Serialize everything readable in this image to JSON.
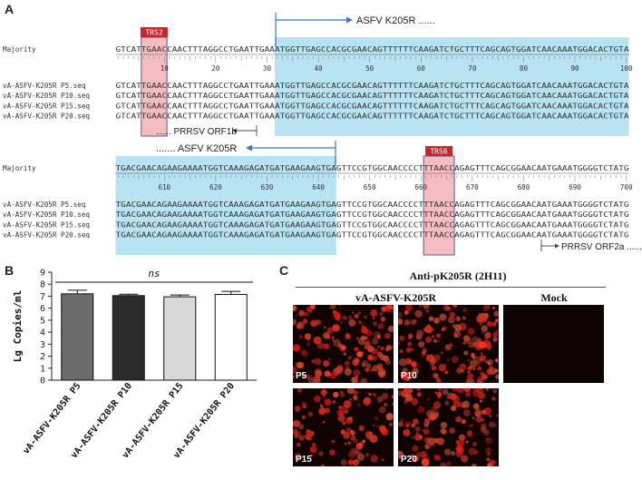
{
  "panelA": {
    "letter": "A",
    "block1": {
      "trs_label": "TRS2",
      "gene_label": "ASFV K205R ......",
      "orf_label": "...... PRRSV ORF1b",
      "majority_label": "Majority",
      "majority_seq": "GTCATTGAACCAACTTTAGGCCTGAATTGAAATGGTTGAGCCACGCGAACAGTTTTTTCAAGATCTGCTTTCAGCAGTGGATCAACAAATGGACACTGTA",
      "ruler": [
        "10",
        "20",
        "30",
        "40",
        "50",
        "60",
        "70",
        "80",
        "90",
        "100"
      ],
      "rows": [
        {
          "name": "vA-ASFV-K205R P5.seq",
          "seq": "GTCATTGAACCAACTTTAGGCCTGAATTGAAATGGTTGAGCCACGCGAACAGTTTTTTCAAGATCTGCTTTCAGCAGTGGATCAACAAATGGACACTGTA"
        },
        {
          "name": "vA-ASFV-K205R P10.seq",
          "seq": "GTCATTGAACCAACTTTAGGCCTGAATTGAAATGGTTGAGCCACGCGAACAGTTTTTTCAAGATCTGCTTTCAGCAGTGGATCAACAAATGGACACTGTA"
        },
        {
          "name": "vA-ASFV-K205R P15.seq",
          "seq": "GTCATTGAACCAACTTTAGGCCTGAATTGAAATGGTTGAGCCACGCGAACAGTTTTTTCAAGATCTGCTTTCAGCAGTGGATCAACAAATGGACACTGTA"
        },
        {
          "name": "vA-ASFV-K205R P20.seq",
          "seq": "GTCATTGAACCAACTTTAGGCCTGAATTGAAATGGTTGAGCCACGCGAACAGTTTTTTCAAGATCTGCTTTCAGCAGTGGATCAACAAATGGACACTGTA"
        }
      ]
    },
    "block2": {
      "trs_label": "TRS6",
      "gene_label": "....... ASFV K205R",
      "orf_label": "PRRSV ORF2a ......",
      "majority_label": "Majority",
      "majority_seq": "TGACGAACAGAAGAAAATGGTCAAAGAGATGATGAAGAAGTGAGTTCCGTGGCAACCCCTTTAACCAGAGTTTCAGCGGAACAATGAAATGGGGTCTATG",
      "ruler": [
        "610",
        "620",
        "630",
        "640",
        "650",
        "660",
        "670",
        "680",
        "690",
        "700"
      ],
      "rows": [
        {
          "name": "vA-ASFV-K205R P5.seq",
          "seq": "TGACGAACAGAAGAAAATGGTCAAAGAGATGATGAAGAAGTGAGTTCCGTGGCAACCCCTTTAACCAGAGTTTCAGCGGAACAATGAAATGGGGTCTATG"
        },
        {
          "name": "vA-ASFV-K205R P10.seq",
          "seq": "TGACGAACAGAAGAAAATGGTCAAAGAGATGATGAAGAAGTGAGTTCCGTGGCAACCCCTTTAACCAGAGTTTCAGCGGAACAATGAAATGGGGTCTATG"
        },
        {
          "name": "vA-ASFV-K205R P15.seq",
          "seq": "TGACGAACAGAAGAAAATGGTCAAAGAGATGATGAAGAAGTGAGTTCCGTGGCAACCCCTTTAACCAGAGTTTCAGCGGAACAATGAAATGGGGTCTATG"
        },
        {
          "name": "vA-ASFV-K205R P20.seq",
          "seq": "TGACGAACAGAAGAAAATGGTCAAAGAGATGATGAAGAAGTGAGTTCCGTGGCAACCCCTTTAACCAGAGTTTCAGCGGAACAATGAAATGGGGTCTATG"
        }
      ]
    }
  },
  "panelB": {
    "letter": "B",
    "significance": "ns"
  },
  "chart_data": {
    "type": "bar",
    "categories": [
      "vA-ASFV-K205R P5",
      "vA-ASFV-K205R P10",
      "vA-ASFV-K205R P15",
      "vA-ASFV-K205R P20"
    ],
    "values": [
      7.2,
      7.05,
      6.95,
      7.15
    ],
    "errors": [
      0.3,
      0.12,
      0.15,
      0.25
    ],
    "ylabel": "Lg Copies/ml",
    "ylim": [
      0,
      9
    ],
    "yticks": [
      "0",
      "1",
      "2",
      "3",
      "4",
      "5",
      "6",
      "7",
      "8",
      "9"
    ],
    "bar_colors": [
      "#6b6b6b",
      "#2b2b2b",
      "#d8d8d8",
      "#ffffff"
    ]
  },
  "panelC": {
    "letter": "C",
    "antibody": "Anti-pK205R (2H11)",
    "group_virus": "vA-ASFV-K205R",
    "group_mock": "Mock",
    "images": [
      "P5",
      "P10",
      "P15",
      "P20"
    ]
  },
  "colors": {
    "trs_red": "#c6262e",
    "trs_box_fill": "#f2a7ad",
    "highlight_blue": "#b7e3f2",
    "arrow_blue": "#3b78c2"
  }
}
